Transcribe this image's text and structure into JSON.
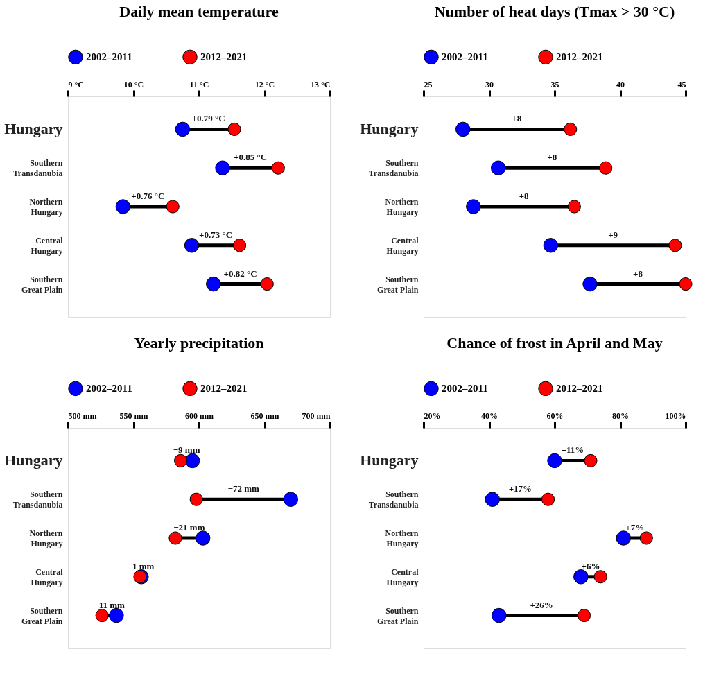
{
  "chart_data": [
    {
      "type": "scatter",
      "orientation": "horizontal",
      "marker": "circle",
      "legend": "top",
      "grid": false,
      "title": "Daily mean temperature",
      "categories": [
        "Hungary",
        "Southern Transdanubia",
        "Northern Hungary",
        "Central Hungary",
        "Southern Great Plain"
      ],
      "series": [
        {
          "name": "2002–2011",
          "color": "#0000ff",
          "values": [
            10.75,
            11.36,
            9.84,
            10.89,
            11.22
          ]
        },
        {
          "name": "2012–2021",
          "color": "#ff0000",
          "values": [
            11.54,
            12.21,
            10.6,
            11.62,
            12.04
          ]
        }
      ],
      "xlim": [
        9,
        13
      ],
      "xticks": [
        {
          "value": 9,
          "label": "9 °C"
        },
        {
          "value": 10,
          "label": "10 °C"
        },
        {
          "value": 11,
          "label": "11 °C"
        },
        {
          "value": 12,
          "label": "12 °C"
        },
        {
          "value": 13,
          "label": "13 °C"
        }
      ],
      "annotations": [
        "+0.79 °C",
        "+0.85 °C",
        "+0.76 °C",
        "+0.73 °C",
        "+0.82 °C"
      ]
    },
    {
      "type": "scatter",
      "orientation": "horizontal",
      "marker": "circle",
      "legend": "top",
      "grid": false,
      "title": "Number of heat days (Tmax > 30 °C)",
      "categories": [
        "Hungary",
        "Southern Transdanubia",
        "Northern Hungary",
        "Central Hungary",
        "Southern Great Plain"
      ],
      "series": [
        {
          "name": "2002–2011",
          "color": "#0000ff",
          "values": [
            28,
            30.7,
            28.8,
            34.7,
            37.7
          ]
        },
        {
          "name": "2012–2021",
          "color": "#ff0000",
          "values": [
            36.2,
            38.9,
            36.5,
            44.2,
            45
          ]
        }
      ],
      "xlim": [
        25,
        45
      ],
      "xticks": [
        25,
        30,
        35,
        40,
        45
      ],
      "annotations": [
        "+8",
        "+8",
        "+8",
        "+9",
        "+8"
      ]
    },
    {
      "type": "scatter",
      "orientation": "horizontal",
      "marker": "circle",
      "legend": "top",
      "grid": false,
      "title": "Yearly precipitation",
      "categories": [
        "Hungary",
        "Southern Transdanubia",
        "Northern Hungary",
        "Central Hungary",
        "Southern Great Plain"
      ],
      "series": [
        {
          "name": "2002–2011",
          "color": "#0000ff",
          "values": [
            595,
            670,
            603,
            556,
            537
          ]
        },
        {
          "name": "2012–2021",
          "color": "#ff0000",
          "values": [
            586,
            598,
            582,
            555,
            526
          ]
        }
      ],
      "xlim": [
        500,
        700
      ],
      "xticks": [
        {
          "value": 500,
          "label": "500 mm"
        },
        {
          "value": 550,
          "label": "550 mm"
        },
        {
          "value": 600,
          "label": "600 mm"
        },
        {
          "value": 650,
          "label": "650 mm"
        },
        {
          "value": 700,
          "label": "700 mm"
        }
      ],
      "annotations": [
        "−9 mm",
        "−72 mm",
        "−21 mm",
        "−1 mm",
        "−11 mm"
      ]
    },
    {
      "type": "scatter",
      "orientation": "horizontal",
      "marker": "circle",
      "legend": "top",
      "grid": false,
      "title": "Chance of frost in April and May",
      "categories": [
        "Hungary",
        "Southern Transdanubia",
        "Northern Hungary",
        "Central Hungary",
        "Southern Great Plain"
      ],
      "series": [
        {
          "name": "2002–2011",
          "color": "#0000ff",
          "values": [
            60,
            41,
            81,
            68,
            43
          ]
        },
        {
          "name": "2012–2021",
          "color": "#ff0000",
          "values": [
            71,
            58,
            88,
            74,
            69
          ]
        }
      ],
      "xlim": [
        20,
        100
      ],
      "xticks": [
        {
          "value": 20,
          "label": "20%"
        },
        {
          "value": 40,
          "label": "40%"
        },
        {
          "value": 60,
          "label": "60%"
        },
        {
          "value": 80,
          "label": "80%"
        },
        {
          "value": 100,
          "label": "100%"
        }
      ],
      "annotations": [
        "+11%",
        "+17%",
        "+7%",
        "+6%",
        "+26%"
      ]
    }
  ]
}
